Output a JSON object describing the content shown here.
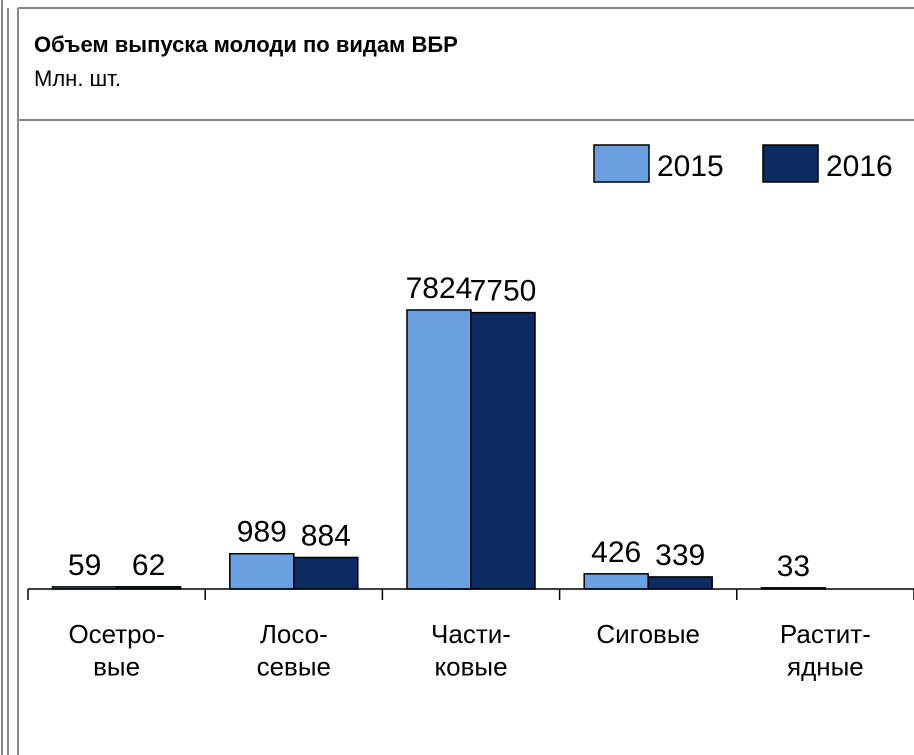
{
  "chart_data": {
    "type": "bar",
    "title": "Объем выпуска молоди по видам ВБР",
    "subtitle": "Млн. шт.",
    "categories": [
      "Осетро-\nвые",
      "Лосо-\nсевые",
      "Части-\nковые",
      "Сиговые",
      "Растит-\nядные"
    ],
    "series": [
      {
        "name": "2015",
        "color": "#6a9fe0",
        "values": [
          59,
          989,
          7824,
          426,
          33
        ]
      },
      {
        "name": "2016",
        "color": "#0d2b63",
        "values": [
          62,
          884,
          7750,
          339,
          null
        ]
      }
    ],
    "legend": "top-right"
  }
}
